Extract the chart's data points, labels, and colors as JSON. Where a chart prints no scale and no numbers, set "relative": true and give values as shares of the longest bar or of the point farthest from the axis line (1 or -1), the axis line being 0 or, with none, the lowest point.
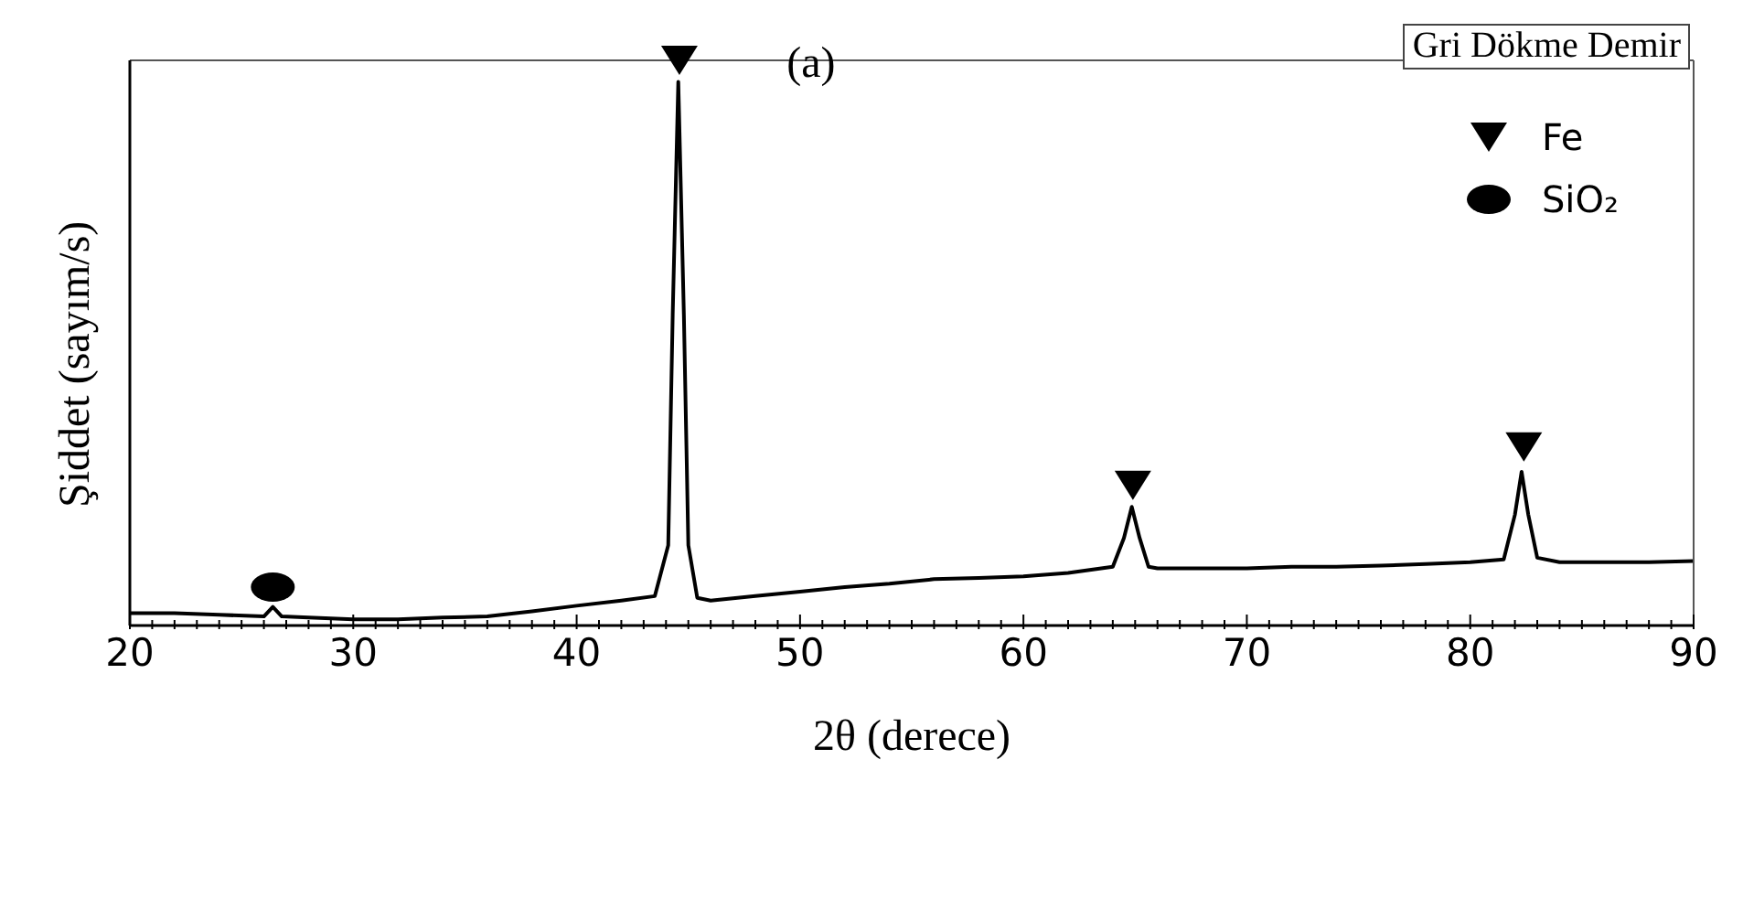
{
  "chart_data": {
    "type": "line",
    "relative": true,
    "xlabel": "2θ (derece)",
    "ylabel": "Şiddet (sayım/s)",
    "annotations": [
      "(a)",
      "Gri Dökme Demir"
    ],
    "xlim": [
      20,
      90
    ],
    "xticks": [
      20,
      {
        "value": 21,
        "label": null
      },
      {
        "value": 22,
        "label": null
      },
      {
        "value": 23,
        "label": null
      },
      {
        "value": 24,
        "label": null
      },
      {
        "value": 25,
        "label": null
      },
      {
        "value": 26,
        "label": null
      },
      {
        "value": 27,
        "label": null
      },
      {
        "value": 28,
        "label": null
      },
      {
        "value": 29,
        "label": null
      },
      30,
      {
        "value": 31,
        "label": null
      },
      {
        "value": 32,
        "label": null
      },
      {
        "value": 33,
        "label": null
      },
      {
        "value": 34,
        "label": null
      },
      {
        "value": 35,
        "label": null
      },
      {
        "value": 36,
        "label": null
      },
      {
        "value": 37,
        "label": null
      },
      {
        "value": 38,
        "label": null
      },
      {
        "value": 39,
        "label": null
      },
      40,
      {
        "value": 41,
        "label": null
      },
      {
        "value": 42,
        "label": null
      },
      {
        "value": 43,
        "label": null
      },
      {
        "value": 44,
        "label": null
      },
      {
        "value": 45,
        "label": null
      },
      {
        "value": 46,
        "label": null
      },
      {
        "value": 47,
        "label": null
      },
      {
        "value": 48,
        "label": null
      },
      {
        "value": 49,
        "label": null
      },
      50,
      {
        "value": 51,
        "label": null
      },
      {
        "value": 52,
        "label": null
      },
      {
        "value": 53,
        "label": null
      },
      {
        "value": 54,
        "label": null
      },
      {
        "value": 55,
        "label": null
      },
      {
        "value": 56,
        "label": null
      },
      {
        "value": 57,
        "label": null
      },
      {
        "value": 58,
        "label": null
      },
      {
        "value": 59,
        "label": null
      },
      60,
      {
        "value": 61,
        "label": null
      },
      {
        "value": 62,
        "label": null
      },
      {
        "value": 63,
        "label": null
      },
      {
        "value": 64,
        "label": null
      },
      {
        "value": 65,
        "label": null
      },
      {
        "value": 66,
        "label": null
      },
      {
        "value": 67,
        "label": null
      },
      {
        "value": 68,
        "label": null
      },
      {
        "value": 69,
        "label": null
      },
      70,
      {
        "value": 71,
        "label": null
      },
      {
        "value": 72,
        "label": null
      },
      {
        "value": 73,
        "label": null
      },
      {
        "value": 74,
        "label": null
      },
      {
        "value": 75,
        "label": null
      },
      {
        "value": 76,
        "label": null
      },
      {
        "value": 77,
        "label": null
      },
      {
        "value": 78,
        "label": null
      },
      {
        "value": 79,
        "label": null
      },
      80,
      {
        "value": 81,
        "label": null
      },
      {
        "value": 82,
        "label": null
      },
      {
        "value": 83,
        "label": null
      },
      {
        "value": 84,
        "label": null
      },
      {
        "value": 85,
        "label": null
      },
      {
        "value": 86,
        "label": null
      },
      {
        "value": 87,
        "label": null
      },
      {
        "value": 88,
        "label": null
      },
      {
        "value": 89,
        "label": null
      },
      90
    ],
    "legend": "top right",
    "series": [
      {
        "color": "#000000",
        "marker": "none",
        "x": [
          20,
          22,
          24,
          26,
          26.4,
          26.8,
          28,
          30,
          32,
          34,
          36,
          38,
          40,
          42,
          43.5,
          44.1,
          44.3,
          44.55,
          44.8,
          45.0,
          45.4,
          46,
          48,
          50,
          52,
          54,
          56,
          58,
          60,
          62,
          64,
          64.5,
          64.85,
          65.2,
          65.6,
          66,
          68,
          70,
          72,
          74,
          76,
          78,
          80,
          81.5,
          82.0,
          82.3,
          82.6,
          83.0,
          84,
          86,
          88,
          90
        ],
        "values": [
          0.022,
          0.022,
          0.019,
          0.016,
          0.033,
          0.016,
          0.014,
          0.011,
          0.011,
          0.014,
          0.016,
          0.025,
          0.035,
          0.044,
          0.052,
          0.142,
          0.55,
          0.962,
          0.55,
          0.142,
          0.049,
          0.044,
          0.052,
          0.06,
          0.068,
          0.074,
          0.082,
          0.084,
          0.087,
          0.093,
          0.104,
          0.155,
          0.21,
          0.155,
          0.104,
          0.101,
          0.101,
          0.101,
          0.104,
          0.104,
          0.106,
          0.109,
          0.112,
          0.117,
          0.196,
          0.272,
          0.196,
          0.12,
          0.112,
          0.112,
          0.112,
          0.114
        ]
      },
      {
        "type": "scatter",
        "name": "Fe",
        "color": "#000000",
        "marker": "triangle",
        "x": [
          44.6,
          64.9,
          82.4
        ],
        "values": [
          1.0,
          0.248,
          0.316
        ]
      },
      {
        "type": "scatter",
        "name": "SiO₂",
        "color": "#000000",
        "marker": "circle",
        "x": [
          26.4
        ],
        "values": [
          0.068
        ]
      }
    ]
  }
}
